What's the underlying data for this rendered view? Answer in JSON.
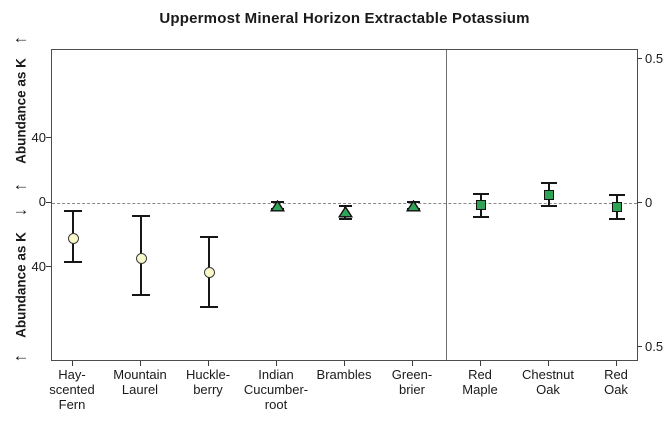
{
  "title": "Uppermost Mineral Horizon Extractable Potassium",
  "left_axis": {
    "upper_label": "Abundance as K",
    "lower_label": "Abundance as K",
    "arrow_top": "←",
    "arrow_above_zero": "←",
    "arrow_below_zero": "→",
    "arrow_bottom": "←",
    "tick_labels": [
      "40",
      "0",
      "40"
    ]
  },
  "right_axis": {
    "tick_labels": [
      "0.5",
      "0",
      "0.5"
    ]
  },
  "colors": {
    "marker_green": "#2FA356",
    "marker_pale_yellow": "#F8F8C8",
    "error_bar": "#161616",
    "zero_line_gray": "#8A8A8A",
    "frame_gray": "#4D4D4D",
    "divider_gray": "#6F6F6F"
  },
  "chart_data": {
    "type": "scatter",
    "title": "Uppermost Mineral Horizon Extractable Potassium",
    "ylabel": "Abundance as K",
    "xlabel": "",
    "grid": false,
    "zero_reference_line": "dashed",
    "left_axis_tick_values": [
      40,
      0,
      40
    ],
    "right_axis_tick_values": [
      0.5,
      0,
      0.5
    ],
    "left_ylim": [
      -97,
      95
    ],
    "right_ylim": [
      -0.543,
      0.533
    ],
    "panel_divider_between": [
      "Green-brier",
      "Red Maple"
    ],
    "series": [
      {
        "name": "understory-herbs-circles",
        "marker": "circle",
        "marker_fill": "#F8F8C8",
        "axis": "left",
        "points": [
          {
            "category": "Hay-scented Fern",
            "label_lines": [
              "Hay-",
              "scented",
              "Fern"
            ],
            "value": -22,
            "ci_low": -36,
            "ci_high": -5
          },
          {
            "category": "Mountain Laurel",
            "label_lines": [
              "Mountain",
              "Laurel"
            ],
            "value": -34,
            "ci_low": -57,
            "ci_high": -8
          },
          {
            "category": "Huckleberry",
            "label_lines": [
              "Huckle-",
              "berry"
            ],
            "value": -43,
            "ci_low": -64,
            "ci_high": -21
          }
        ]
      },
      {
        "name": "understory-plants-triangles",
        "marker": "triangle",
        "marker_fill": "#2FA356",
        "axis": "left",
        "points": [
          {
            "category": "Indian Cucumber-root",
            "label_lines": [
              "Indian",
              "Cucumber-",
              "root"
            ],
            "value": -1,
            "ci_low": -3.5,
            "ci_high": 1
          },
          {
            "category": "Brambles",
            "label_lines": [
              "Brambles"
            ],
            "value": -5,
            "ci_low": -9.5,
            "ci_high": -1.5
          },
          {
            "category": "Green-brier",
            "label_lines": [
              "Green-",
              "brier"
            ],
            "value": -1,
            "ci_low": -3.5,
            "ci_high": 1
          }
        ]
      },
      {
        "name": "trees-squares",
        "marker": "square",
        "marker_fill": "#2FA356",
        "axis": "right",
        "points": [
          {
            "category": "Red Maple",
            "label_lines": [
              "Red",
              "Maple"
            ],
            "value": -0.005,
            "ci_low": -0.047,
            "ci_high": 0.033
          },
          {
            "category": "Chestnut Oak",
            "label_lines": [
              "Chestnut",
              "Oak"
            ],
            "value": 0.03,
            "ci_low": -0.008,
            "ci_high": 0.072
          },
          {
            "category": "Red Oak",
            "label_lines": [
              "Red",
              "Oak"
            ],
            "value": -0.012,
            "ci_low": -0.052,
            "ci_high": 0.03
          }
        ]
      }
    ]
  }
}
